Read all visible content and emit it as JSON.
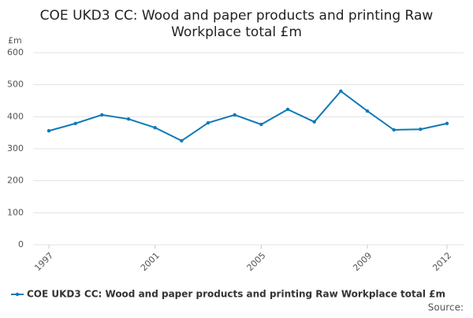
{
  "chart_data": {
    "type": "line",
    "title": "COE UKD3 CC: Wood and paper products and printing Raw Workplace total £m",
    "y_label": "£m",
    "x": [
      1997,
      1998,
      1999,
      2000,
      2001,
      2002,
      2003,
      2004,
      2005,
      2006,
      2007,
      2008,
      2009,
      2010,
      2011,
      2012
    ],
    "series": [
      {
        "name": "COE UKD3 CC: Wood and paper products and printing Raw Workplace total £m",
        "color": "#0f7ab6",
        "values": [
          356,
          379,
          406,
          393,
          366,
          325,
          381,
          406,
          376,
          423,
          384,
          480,
          418,
          359,
          361,
          379
        ]
      }
    ],
    "xlim": [
      1997,
      2012
    ],
    "xticks": [
      1997,
      2001,
      2005,
      2009,
      2012
    ],
    "ylim": [
      0,
      600
    ],
    "yticks": [
      0,
      100,
      200,
      300,
      400,
      500,
      600
    ],
    "grid": true,
    "legend": "bottom",
    "source": "Source:"
  }
}
